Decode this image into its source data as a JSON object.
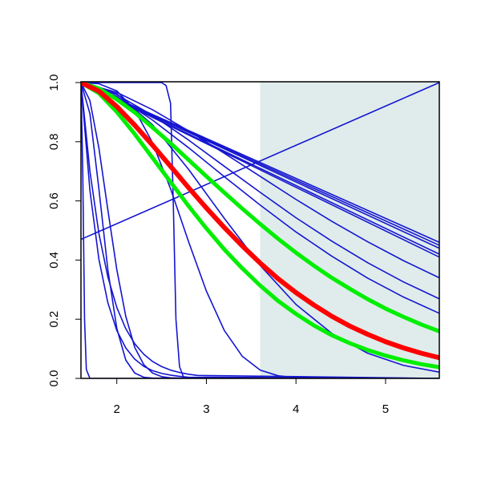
{
  "chart_data": {
    "type": "line",
    "xlim": [
      1.6,
      5.6
    ],
    "ylim": [
      0,
      1
    ],
    "xticks": [
      2,
      3,
      4,
      5
    ],
    "yticks": [
      {
        "value": 0,
        "label": "0.0"
      },
      0.2,
      0.4,
      0.6,
      0.8,
      {
        "value": 1,
        "label": "1.0"
      }
    ],
    "shade": {
      "xlim": [
        3.6,
        5.6
      ],
      "color": "#dfeceb"
    },
    "series": [
      {
        "color": "#1515d0",
        "line_width": 1.6,
        "x": [
          1.6,
          5.6
        ],
        "values": [
          1,
          0.46
        ]
      },
      {
        "color": "#1515d0",
        "line_width": 1.6,
        "x": [
          1.6,
          5.6
        ],
        "values": [
          1,
          0.45
        ]
      },
      {
        "color": "#1515d0",
        "line_width": 1.6,
        "x": [
          1.6,
          5.6
        ],
        "values": [
          1,
          0.44
        ]
      },
      {
        "color": "#1515d0",
        "line_width": 1.6,
        "x": [
          1.6,
          5.6
        ],
        "values": [
          1,
          0.42
        ]
      },
      {
        "color": "#1515d0",
        "line_width": 1.6,
        "x": [
          1.6,
          5.6
        ],
        "values": [
          1,
          0.41
        ]
      },
      {
        "color": "#1515d0",
        "line_width": 1.6,
        "x": [
          1.6,
          5.6
        ],
        "values": [
          0.47,
          1
        ]
      },
      {
        "color": "#1515d0",
        "line_width": 1.6,
        "x": [
          1.6,
          2.0,
          2.4,
          2.8,
          3.2,
          3.6,
          4.0,
          4.4,
          4.8,
          5.2,
          5.6
        ],
        "values": [
          1,
          0.967,
          0.908,
          0.837,
          0.761,
          0.683,
          0.605,
          0.531,
          0.462,
          0.398,
          0.34
        ]
      },
      {
        "color": "#1515d0",
        "line_width": 1.6,
        "x": [
          1.6,
          2.0,
          2.4,
          2.8,
          3.2,
          3.6,
          4.0,
          4.4,
          4.8,
          5.2,
          5.6
        ],
        "values": [
          1,
          0.959,
          0.889,
          0.806,
          0.717,
          0.629,
          0.543,
          0.464,
          0.391,
          0.326,
          0.269
        ]
      },
      {
        "color": "#1515d0",
        "line_width": 1.6,
        "x": [
          1.6,
          2.0,
          2.4,
          2.8,
          3.2,
          3.6,
          4.0,
          4.4,
          4.8,
          5.2,
          5.6
        ],
        "values": [
          1,
          0.953,
          0.873,
          0.78,
          0.682,
          0.586,
          0.495,
          0.413,
          0.339,
          0.275,
          0.22
        ]
      },
      {
        "color": "#1515d0",
        "line_width": 1.6,
        "x": [
          1.6,
          2.0,
          2.4,
          2.8,
          3.2,
          3.6,
          4.0,
          4.4,
          4.8,
          5.2,
          5.6
        ],
        "values": [
          1,
          0.962,
          0.857,
          0.707,
          0.541,
          0.382,
          0.25,
          0.152,
          0.085,
          0.044,
          0.021
        ]
      },
      {
        "color": "#1515d0",
        "line_width": 1.6,
        "x": [
          1.6,
          1.8,
          2.0,
          2.2,
          2.4,
          2.6,
          2.8,
          3.0,
          3.2,
          3.4,
          3.6,
          3.8,
          4.0,
          5.6
        ],
        "values": [
          1,
          0.996,
          0.972,
          0.908,
          0.796,
          0.641,
          0.463,
          0.295,
          0.162,
          0.075,
          0.028,
          0.009,
          0.002,
          0
        ]
      },
      {
        "color": "#1515d0",
        "line_width": 1.6,
        "x": [
          1.6,
          2.5,
          2.55,
          2.6,
          2.63,
          2.66,
          2.7,
          2.75,
          5.6
        ],
        "values": [
          1,
          1,
          0.99,
          0.93,
          0.6,
          0.2,
          0.04,
          0,
          0
        ]
      },
      {
        "color": "#1515d0",
        "line_width": 1.6,
        "x": [
          1.6,
          1.62,
          1.64,
          1.66,
          1.7,
          5.6
        ],
        "values": [
          1,
          0.7,
          0.2,
          0.03,
          0,
          0
        ]
      },
      {
        "color": "#1515d0",
        "line_width": 1.6,
        "x": [
          1.6,
          1.7,
          1.8,
          1.9,
          2.0,
          2.1,
          2.2,
          2.3,
          2.4,
          5.6
        ],
        "values": [
          1,
          0.895,
          0.641,
          0.368,
          0.169,
          0.062,
          0.018,
          0.004,
          0.001,
          0
        ]
      },
      {
        "color": "#1515d0",
        "line_width": 1.6,
        "x": [
          1.6,
          1.7,
          1.8,
          1.9,
          2.0,
          2.1,
          2.2,
          2.3,
          2.4,
          2.5,
          2.6,
          2.7,
          5.6
        ],
        "values": [
          1,
          0.939,
          0.779,
          0.57,
          0.368,
          0.21,
          0.105,
          0.047,
          0.018,
          0.006,
          0.002,
          0.001,
          0
        ]
      },
      {
        "color": "#1515d0",
        "line_width": 1.6,
        "x": [
          1.6,
          1.7,
          1.8,
          1.9,
          2.0,
          2.1,
          2.2,
          2.3,
          2.4,
          2.5,
          2.6,
          2.7,
          2.8,
          5.6
        ],
        "values": [
          1,
          0.635,
          0.403,
          0.256,
          0.162,
          0.103,
          0.065,
          0.041,
          0.026,
          0.017,
          0.011,
          0.007,
          0.004,
          0
        ]
      },
      {
        "color": "#1515d0",
        "line_width": 1.6,
        "x": [
          1.6,
          1.7,
          1.8,
          1.9,
          2.0,
          2.1,
          2.2,
          2.3,
          2.4,
          2.5,
          2.6,
          2.7,
          2.8,
          2.9,
          5.6
        ],
        "values": [
          1,
          0.7,
          0.49,
          0.343,
          0.24,
          0.168,
          0.117,
          0.082,
          0.057,
          0.04,
          0.028,
          0.02,
          0.014,
          0.01,
          0
        ]
      },
      {
        "color": "#00ee00",
        "line_width": 5,
        "x": [
          1.6,
          1.8,
          2.0,
          2.2,
          2.4,
          2.6,
          2.8,
          3.0,
          3.2,
          3.4,
          3.6,
          3.8,
          4.0,
          4.2,
          4.4,
          4.6,
          4.8,
          5.0,
          5.2,
          5.4,
          5.6
        ],
        "values": [
          1,
          0.98,
          0.943,
          0.899,
          0.848,
          0.795,
          0.739,
          0.683,
          0.628,
          0.574,
          0.522,
          0.472,
          0.425,
          0.381,
          0.34,
          0.303,
          0.268,
          0.236,
          0.208,
          0.182,
          0.159
        ]
      },
      {
        "color": "#00ee00",
        "line_width": 5,
        "x": [
          1.6,
          1.8,
          2.0,
          2.2,
          2.4,
          2.6,
          2.8,
          3.0,
          3.2,
          3.4,
          3.6,
          3.8,
          4.0,
          4.2,
          4.4,
          4.6,
          4.8,
          5.0,
          5.2,
          5.4,
          5.6
        ],
        "values": [
          1,
          0.964,
          0.901,
          0.826,
          0.745,
          0.664,
          0.583,
          0.507,
          0.436,
          0.372,
          0.314,
          0.262,
          0.218,
          0.179,
          0.146,
          0.119,
          0.096,
          0.077,
          0.061,
          0.048,
          0.038
        ]
      },
      {
        "color": "#ff0000",
        "line_width": 6,
        "x": [
          1.6,
          1.8,
          2.0,
          2.2,
          2.4,
          2.6,
          2.8,
          3.0,
          3.2,
          3.4,
          3.6,
          3.8,
          4.0,
          4.2,
          4.4,
          4.6,
          4.8,
          5.0,
          5.2,
          5.4,
          5.6
        ],
        "values": [
          1,
          0.971,
          0.919,
          0.856,
          0.788,
          0.717,
          0.645,
          0.576,
          0.51,
          0.448,
          0.39,
          0.337,
          0.29,
          0.248,
          0.21,
          0.177,
          0.149,
          0.124,
          0.103,
          0.085,
          0.07
        ]
      }
    ]
  }
}
